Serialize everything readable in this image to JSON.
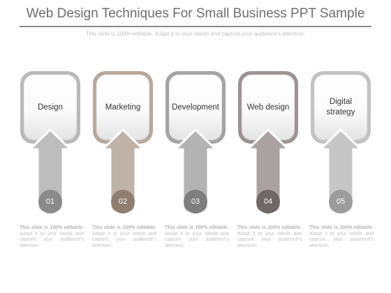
{
  "title": "Web Design Techniques For Small Business PPT Sample",
  "subtitle": "This slide is 100% editable. Adapt it to your needs and capture your audience's attention.",
  "steps": [
    {
      "label": "Design",
      "number": "01",
      "frame_color": "#b9b9b9",
      "arrow_color": "#bdbdbd",
      "circle_color": "#8a8a8a",
      "desc_bold": "This slide is 100% editable.",
      "desc_rest": "Adapt it to your needs and capture your audience's attention."
    },
    {
      "label": "Marketing",
      "number": "02",
      "frame_color": "#b8a99b",
      "arrow_color": "#bfb2a6",
      "circle_color": "#8f7e70",
      "desc_bold": "This slide is 100% editable.",
      "desc_rest": "Adapt it to your needs and capture your audience's attention."
    },
    {
      "label": "Development",
      "number": "03",
      "frame_color": "#a4a4a4",
      "arrow_color": "#b3b3b3",
      "circle_color": "#7e7e7e",
      "desc_bold": "This slide is 100% editable.",
      "desc_rest": "Adapt it to your needs and capture your audience's attention."
    },
    {
      "label": "Web design",
      "number": "04",
      "frame_color": "#9c9393",
      "arrow_color": "#aaa1a1",
      "circle_color": "#716767",
      "desc_bold": "This slide is 100% editable.",
      "desc_rest": "Adapt it to your needs and capture your audience's attention."
    },
    {
      "label": "Digital strategy",
      "number": "05",
      "frame_color": "#c2c2c2",
      "arrow_color": "#c6c6c6",
      "circle_color": "#9c9c9c",
      "desc_bold": "This slide is 100% editable.",
      "desc_rest": "Adapt it to your needs and capture your audience's attention."
    }
  ]
}
